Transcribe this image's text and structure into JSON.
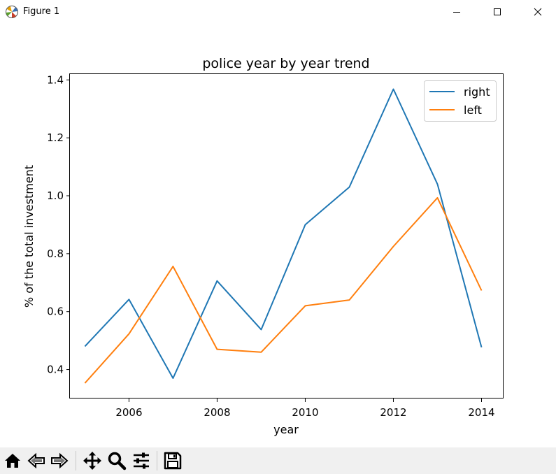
{
  "window": {
    "title": "Figure 1",
    "icons": {
      "app": "matplotlib-app-icon",
      "minimize": "minimize-icon",
      "maximize": "maximize-icon",
      "close": "close-icon"
    }
  },
  "toolbar": {
    "tools": [
      "home-icon",
      "back-arrow-icon",
      "forward-arrow-icon",
      "pan-icon",
      "zoom-icon",
      "configure-subplots-icon",
      "save-icon"
    ]
  },
  "chart_data": {
    "type": "line",
    "title": "police year by year trend",
    "xlabel": "year",
    "ylabel": "% of the total investment",
    "xlim": [
      2004.66,
      2014.5
    ],
    "ylim": [
      0.3,
      1.42
    ],
    "xticks": [
      2006,
      2008,
      2010,
      2012,
      2014
    ],
    "yticks": [
      0.4,
      0.6,
      0.8,
      1.0,
      1.2,
      1.4
    ],
    "ytick_labels": [
      "0.4",
      "0.6",
      "0.8",
      "1.0",
      "1.2",
      "1.4"
    ],
    "grid": false,
    "legend_position": "top-right",
    "x": [
      2005,
      2006,
      2007,
      2008,
      2009,
      2010,
      2011,
      2012,
      2013,
      2014
    ],
    "series": [
      {
        "name": "right",
        "color": "#1f77b4",
        "values": [
          0.48,
          0.642,
          0.37,
          0.706,
          0.538,
          0.9,
          1.03,
          1.368,
          1.04,
          0.477
        ]
      },
      {
        "name": "left",
        "color": "#ff7f0e",
        "values": [
          0.353,
          0.523,
          0.756,
          0.47,
          0.46,
          0.62,
          0.64,
          0.825,
          0.993,
          0.673
        ]
      }
    ]
  }
}
